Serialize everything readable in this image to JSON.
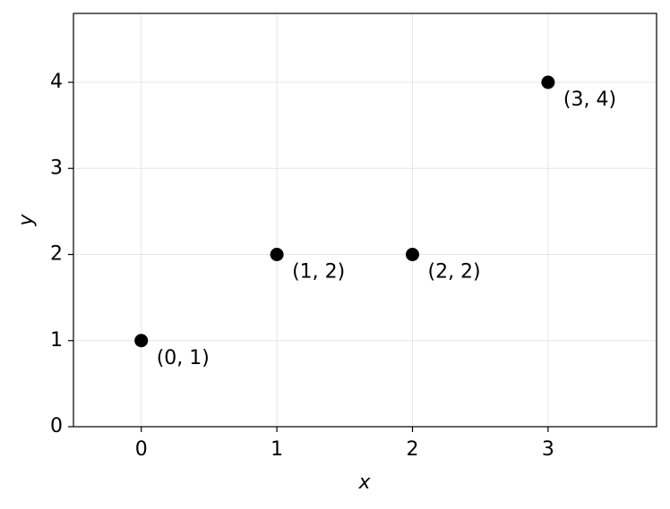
{
  "chart_data": {
    "type": "scatter",
    "x": [
      0,
      1,
      2,
      3
    ],
    "values": [
      1,
      2,
      2,
      4
    ],
    "color": "#000000",
    "annotations": [
      "(0, 1)",
      "(1, 2)",
      "(2, 2)",
      "(3, 4)"
    ],
    "xlabel": "x",
    "ylabel": "y",
    "xlim": [
      -0.5,
      3.8
    ],
    "ylim": [
      0,
      4.8
    ],
    "xticks": [
      0,
      1,
      2,
      3
    ],
    "yticks": [
      0,
      1,
      2,
      3,
      4
    ],
    "grid": true
  }
}
